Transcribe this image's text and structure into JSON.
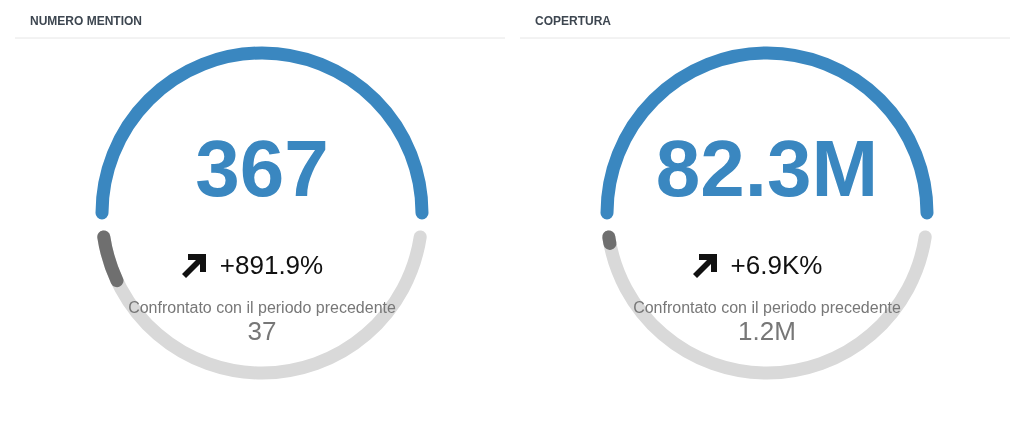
{
  "chart_data": [
    {
      "type": "other",
      "title": "NUMERO MENTION",
      "values": [
        367,
        37
      ],
      "value_labels": [
        "367",
        "37"
      ],
      "colors": [
        "#3a87c0",
        "#6f6f6f"
      ],
      "annotations": [
        "+891.9%",
        "Confrontato con il periodo precedente"
      ]
    },
    {
      "type": "other",
      "title": "COPERTURA",
      "values": [
        82300000,
        1200000
      ],
      "value_labels": [
        "82.3M",
        "1.2M"
      ],
      "colors": [
        "#3a87c0",
        "#6f6f6f"
      ],
      "annotations": [
        "+6.9K%",
        "Confrontato con il periodo precedente"
      ]
    }
  ]
}
